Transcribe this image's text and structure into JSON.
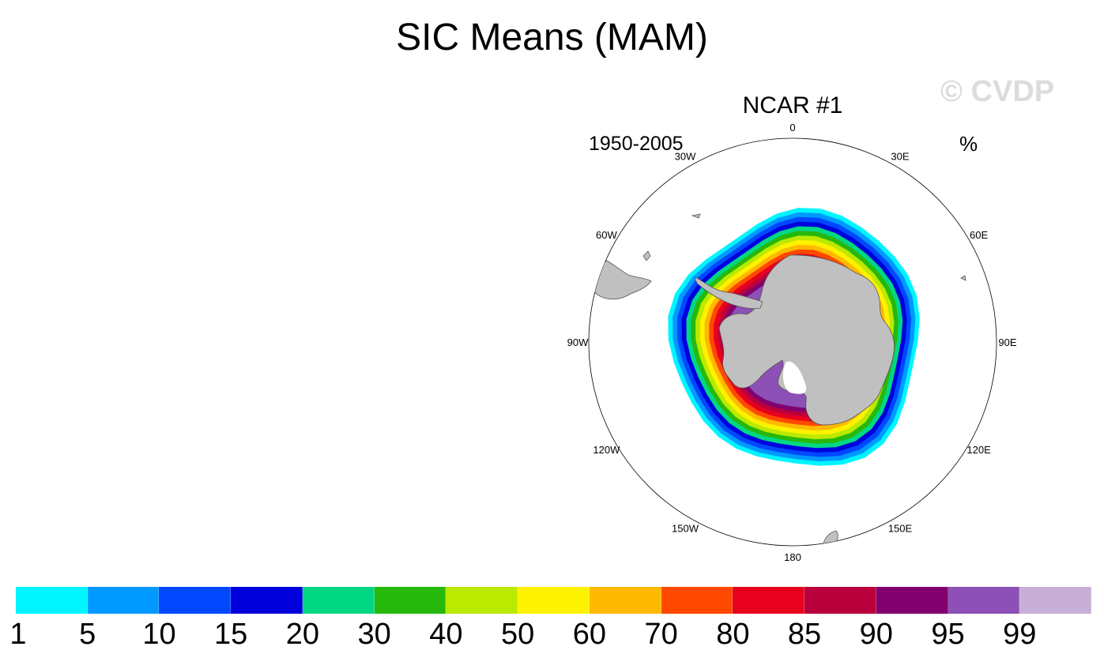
{
  "title": "SIC Means (MAM)",
  "subtitle": "NCAR #1",
  "left_label": "1950-2005",
  "right_label": "%",
  "watermark": "© CVDP",
  "map": {
    "projection": "south-polar-stereographic",
    "longitude_labels": [
      "0",
      "30E",
      "60E",
      "90E",
      "120E",
      "150E",
      "180",
      "150W",
      "120W",
      "90W",
      "60W",
      "30W"
    ],
    "land_color": "#c0c0c0",
    "variable": "sea ice concentration"
  },
  "colorbar": {
    "colors": [
      "#00f5ff",
      "#0099ff",
      "#0047ff",
      "#0000dd",
      "#00d784",
      "#27b80c",
      "#bce900",
      "#fff200",
      "#ffb900",
      "#ff4800",
      "#e8001f",
      "#b9003c",
      "#82006e",
      "#8c50b6",
      "#c8afd8"
    ],
    "labels": [
      "1",
      "5",
      "10",
      "15",
      "20",
      "30",
      "40",
      "50",
      "60",
      "70",
      "80",
      "85",
      "90",
      "95",
      "99"
    ]
  }
}
